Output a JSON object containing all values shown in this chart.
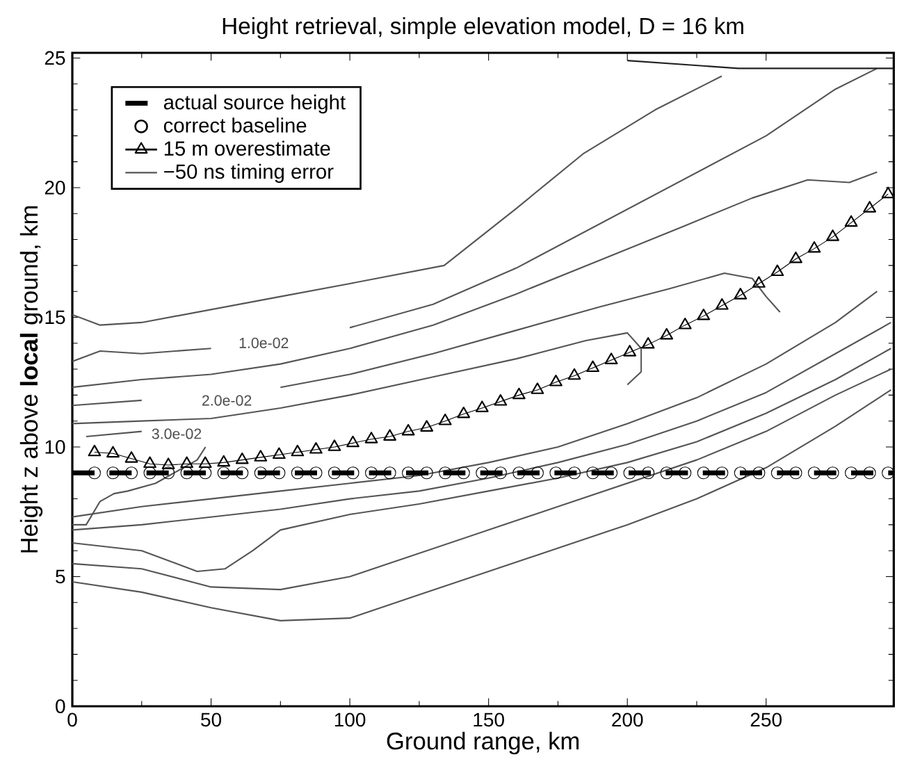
{
  "chart_data": {
    "type": "line",
    "title": "Height retrieval, simple elevation model, D = 16 km",
    "xlabel": "Ground range, km",
    "ylabel": "Height  z  above **local** ground, km",
    "xlim": [
      0,
      296
    ],
    "ylim": [
      0,
      25.2
    ],
    "xticks": [
      0,
      50,
      100,
      150,
      200,
      250
    ],
    "yticks": [
      0,
      5,
      10,
      15,
      20,
      25
    ],
    "grid": false,
    "legend": "top left",
    "annotations": [
      "1.0e-02",
      "2.0e-02",
      "3.0e-02"
    ],
    "series": [
      {
        "name": "actual source height",
        "type": "line",
        "line_style": "dashed",
        "marker": "none",
        "color": "#000000",
        "x": [
          0,
          296
        ],
        "values": [
          9,
          9
        ]
      },
      {
        "name": "correct baseline",
        "type": "scatter",
        "marker": "circle",
        "color": "#000000",
        "x": [
          8,
          14.65,
          21.3,
          27.95,
          34.6,
          41.25,
          47.9,
          54.55,
          61.2,
          67.85,
          74.5,
          81.15,
          87.8,
          94.45,
          101.1,
          107.75,
          114.4,
          121.05,
          127.7,
          134.35,
          141,
          147.65,
          154.3,
          160.95,
          167.6,
          174.25,
          180.9,
          187.55,
          194.2,
          200.85,
          207.5,
          214.15,
          220.8,
          227.45,
          234.1,
          240.75,
          247.4,
          254.05,
          260.7,
          267.35,
          274,
          280.65,
          287.3,
          293.95
        ],
        "values": [
          9,
          9,
          9,
          9,
          9,
          9,
          9,
          9,
          9,
          9,
          9,
          9,
          9,
          9,
          9,
          9,
          9,
          9,
          9,
          9,
          9,
          9,
          9,
          9,
          9,
          9,
          9,
          9,
          9,
          9,
          9,
          9,
          9,
          9,
          9,
          9,
          9,
          9,
          9,
          9,
          9,
          9,
          9,
          9
        ]
      },
      {
        "name": "15 m overestimate",
        "type": "line",
        "marker": "triangle",
        "line_style": "solid",
        "color": "#000000",
        "x": [
          8,
          14.65,
          21.3,
          27.95,
          34.6,
          41.25,
          47.9,
          54.55,
          61.2,
          67.85,
          74.5,
          81.15,
          87.8,
          94.45,
          101.1,
          107.75,
          114.4,
          121.05,
          127.7,
          134.35,
          141,
          147.65,
          154.3,
          160.95,
          167.6,
          174.25,
          180.9,
          187.55,
          194.2,
          200.85,
          207.5,
          214.15,
          220.8,
          227.45,
          234.1,
          240.75,
          247.4,
          254.05,
          260.7,
          267.35,
          274,
          280.65,
          287.3,
          293.95
        ],
        "values": [
          9.8,
          9.75,
          9.55,
          9.35,
          9.3,
          9.35,
          9.35,
          9.4,
          9.5,
          9.6,
          9.7,
          9.8,
          9.9,
          10.0,
          10.15,
          10.3,
          10.4,
          10.6,
          10.75,
          11.0,
          11.27,
          11.5,
          11.75,
          12.0,
          12.2,
          12.5,
          12.75,
          13.05,
          13.35,
          13.65,
          13.95,
          14.3,
          14.7,
          15.05,
          15.45,
          15.85,
          16.3,
          16.75,
          17.25,
          17.65,
          18.1,
          18.65,
          19.2,
          19.75
        ]
      },
      {
        "name": "−50 ns timing error",
        "marker": "none",
        "line_style": "solid",
        "color": "#555555",
        "x": [
          0,
          10,
          25,
          50,
          75,
          100,
          134,
          160,
          184,
          210,
          234
        ],
        "values": [
          15.1,
          14.7,
          14.8,
          15.3,
          15.8,
          16.3,
          17.0,
          19.2,
          21.3,
          23.0,
          24.3
        ]
      },
      {
        "marker": "none",
        "line_style": "solid",
        "color": "#555555",
        "x": [
          0,
          10,
          25,
          50,
          75,
          100,
          130,
          160,
          190,
          220,
          250,
          275,
          290
        ],
        "values": [
          13.3,
          13.7,
          13.6,
          13.8,
          null,
          14.6,
          15.5,
          16.9,
          18.6,
          20.3,
          22.0,
          23.8,
          24.6
        ]
      },
      {
        "marker": "none",
        "line_style": "solid",
        "color": "#555555",
        "x": [
          0,
          25,
          50,
          75,
          100,
          130,
          160,
          190,
          220,
          245,
          265,
          280,
          290
        ],
        "values": [
          12.3,
          12.6,
          12.8,
          13.2,
          13.8,
          14.7,
          15.9,
          17.2,
          18.5,
          19.6,
          20.3,
          20.2,
          20.6
        ]
      },
      {
        "marker": "none",
        "line_style": "solid",
        "color": "#555555",
        "x": [
          0,
          25,
          50,
          75,
          100,
          130,
          160,
          190,
          215,
          235,
          245,
          250,
          255
        ],
        "values": [
          11.6,
          11.8,
          null,
          12.3,
          12.8,
          13.6,
          14.5,
          15.4,
          16.1,
          16.7,
          16.5,
          15.8,
          15.2
        ]
      },
      {
        "marker": "none",
        "line_style": "solid",
        "color": "#555555",
        "x": [
          0,
          25,
          50,
          75,
          100,
          130,
          160,
          185,
          200,
          205,
          205,
          200
        ],
        "values": [
          10.9,
          11.0,
          11.1,
          11.5,
          12.0,
          12.7,
          13.4,
          14.1,
          14.4,
          13.8,
          12.9,
          12.4
        ]
      },
      {
        "marker": "none",
        "line_style": "solid",
        "color": "#555555",
        "x": [
          5,
          25,
          45,
          48,
          45,
          35,
          30,
          20,
          15,
          10,
          5,
          0
        ],
        "values": [
          10.4,
          10.6,
          null,
          10.0,
          9.5,
          8.9,
          8.6,
          8.3,
          8.2,
          7.9,
          7.0,
          7.0
        ]
      },
      {
        "marker": "none",
        "line_style": "solid",
        "color": "#555555",
        "x": [
          0,
          25,
          50,
          75,
          100,
          125,
          150,
          175,
          200,
          225,
          250,
          275,
          290
        ],
        "values": [
          7.3,
          7.7,
          8.0,
          8.3,
          8.6,
          8.9,
          9.4,
          10.0,
          10.9,
          11.9,
          13.2,
          14.8,
          16.0
        ]
      },
      {
        "marker": "none",
        "line_style": "solid",
        "color": "#555555",
        "x": [
          0,
          25,
          50,
          75,
          100,
          125,
          150,
          175,
          200,
          225,
          250,
          275,
          295
        ],
        "values": [
          6.8,
          7.0,
          7.3,
          7.6,
          8.0,
          8.3,
          8.8,
          9.4,
          10.1,
          11.0,
          12.1,
          13.6,
          14.8
        ]
      },
      {
        "marker": "none",
        "line_style": "solid",
        "color": "#555555",
        "x": [
          0,
          25,
          45,
          55,
          65,
          75,
          100,
          125,
          150,
          175,
          200,
          225,
          250,
          275,
          295
        ],
        "values": [
          6.3,
          6.0,
          5.2,
          5.3,
          6.0,
          6.8,
          7.4,
          7.8,
          8.3,
          8.8,
          9.4,
          10.2,
          11.3,
          12.6,
          13.8
        ]
      },
      {
        "marker": "none",
        "line_style": "solid",
        "color": "#555555",
        "x": [
          0,
          25,
          50,
          75,
          100,
          125,
          150,
          175,
          200,
          225,
          250,
          275,
          295
        ],
        "values": [
          5.5,
          5.3,
          4.6,
          4.5,
          5.0,
          5.9,
          6.8,
          7.7,
          8.6,
          9.5,
          10.6,
          12.0,
          13.0
        ]
      },
      {
        "marker": "none",
        "line_style": "solid",
        "color": "#555555",
        "x": [
          0,
          25,
          50,
          75,
          100,
          125,
          150,
          175,
          200,
          225,
          250,
          275,
          295
        ],
        "values": [
          4.8,
          4.4,
          3.8,
          3.3,
          3.4,
          4.3,
          5.2,
          6.1,
          7.0,
          8.0,
          9.2,
          10.8,
          12.2
        ]
      },
      {
        "marker": "none",
        "line_style": "solid",
        "color": "#222222",
        "x": [
          200,
          240,
          296
        ],
        "values": [
          24.9,
          24.6,
          24.6
        ]
      }
    ]
  }
}
